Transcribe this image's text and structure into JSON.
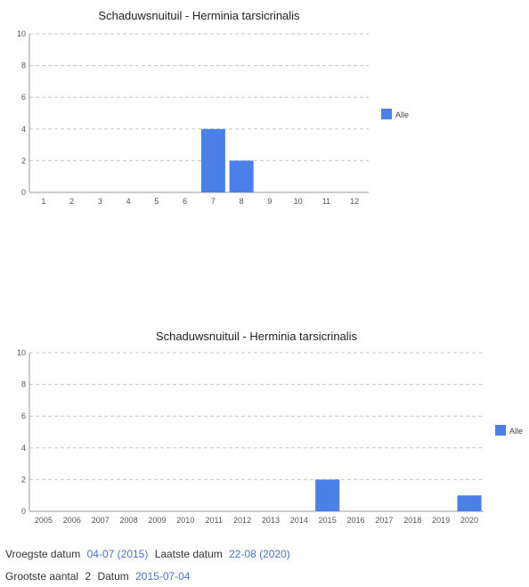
{
  "colors": {
    "bar": "#4a80e8",
    "grid": "#c8c8c8",
    "link": "#4a74c9"
  },
  "chart_data": [
    {
      "type": "bar",
      "title": "Schaduwsnuituil - Herminia tarsicrinalis",
      "categories": [
        "1",
        "2",
        "3",
        "4",
        "5",
        "6",
        "7",
        "8",
        "9",
        "10",
        "11",
        "12"
      ],
      "series": [
        {
          "name": "Alle",
          "values": [
            0,
            0,
            0,
            0,
            0,
            0,
            4,
            2,
            0,
            0,
            0,
            0
          ]
        }
      ],
      "ylim": [
        0,
        10
      ],
      "yticks": [
        0,
        2,
        4,
        6,
        8,
        10
      ],
      "grid": true,
      "legend": "right"
    },
    {
      "type": "bar",
      "title": "Schaduwsnuituil - Herminia tarsicrinalis",
      "categories": [
        "2005",
        "2006",
        "2007",
        "2008",
        "2009",
        "2010",
        "2011",
        "2012",
        "2013",
        "2014",
        "2015",
        "2016",
        "2017",
        "2018",
        "2019",
        "2020"
      ],
      "series": [
        {
          "name": "Alle",
          "values": [
            0,
            0,
            0,
            0,
            0,
            0,
            0,
            0,
            0,
            0,
            2,
            0,
            0,
            0,
            0,
            1
          ]
        }
      ],
      "ylim": [
        0,
        10
      ],
      "yticks": [
        0,
        2,
        4,
        6,
        8,
        10
      ],
      "grid": true,
      "legend": "right"
    }
  ],
  "info": {
    "earliest_label": "Vroegste datum",
    "earliest_value": "04-07 (2015)",
    "latest_label": "Laatste datum",
    "latest_value": "22-08 (2020)",
    "max_label": "Grootste aantal",
    "max_count": "2",
    "date_label": "Datum",
    "date_value": "2015-07-04"
  }
}
